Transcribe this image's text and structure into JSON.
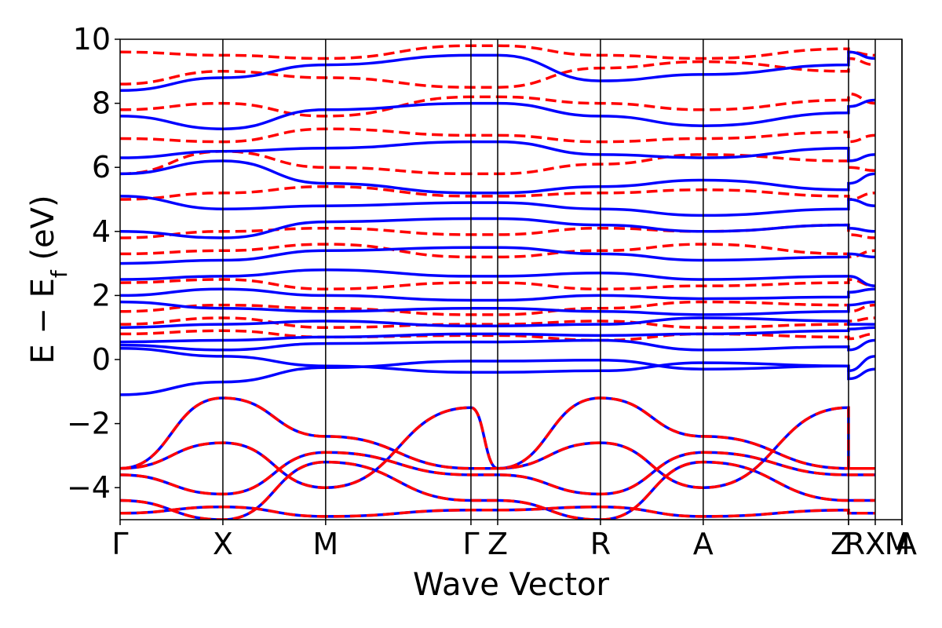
{
  "chart_data": {
    "type": "line",
    "xlabel": "Wave Vector",
    "ylabel": "E − E_f (eV)",
    "ylabel_parts": {
      "e": "E",
      "minus": "−",
      "ef_main": "E",
      "ef_sub": "f",
      "unit": "(eV)"
    },
    "ylim": [
      -5,
      10
    ],
    "yticks": [
      -4,
      -2,
      0,
      2,
      4,
      6,
      8,
      10
    ],
    "ytick_labels": [
      "−4",
      "−2",
      "0",
      "2",
      "4",
      "6",
      "8",
      "10"
    ],
    "kpath": [
      {
        "label": "Γ",
        "k": 0.0
      },
      {
        "label": "X",
        "k": 0.5
      },
      {
        "label": "M",
        "k": 1.0
      },
      {
        "label": "Γ",
        "k": 1.707
      },
      {
        "label": "Z",
        "k": 1.837
      },
      {
        "label": "R",
        "k": 2.337
      },
      {
        "label": "A",
        "k": 2.837
      },
      {
        "label": "Z",
        "k": 3.544
      },
      {
        "label": "R",
        "k": 3.544
      },
      {
        "label": "X",
        "k": 3.674
      },
      {
        "label": "M",
        "k": 3.804
      },
      {
        "label": "A",
        "k": 3.804
      }
    ],
    "xlim": [
      0,
      3.804
    ],
    "grid": false,
    "series_styles": [
      {
        "style": "solid",
        "color": "#0000ff"
      },
      {
        "style": "dashed",
        "color": "#ff0000"
      }
    ],
    "bands": {
      "solid_blue": [
        [
          -1.1,
          -0.7,
          -0.25,
          -0.05,
          -0.05,
          -0.02,
          -0.3,
          -0.2,
          -0.6,
          -0.3
        ],
        [
          0.35,
          0.1,
          -0.2,
          -0.4,
          -0.4,
          -0.35,
          -0.1,
          -0.2,
          -0.35,
          0.1
        ],
        [
          0.45,
          0.3,
          0.5,
          0.55,
          0.55,
          0.6,
          0.3,
          0.4,
          0.3,
          0.6
        ],
        [
          0.55,
          0.6,
          0.7,
          0.8,
          0.8,
          0.75,
          0.8,
          0.9,
          0.95,
          1.0
        ],
        [
          1.0,
          1.1,
          1.2,
          1.05,
          1.05,
          1.1,
          1.3,
          1.2,
          1.1,
          1.1
        ],
        [
          1.8,
          1.6,
          1.5,
          1.6,
          1.6,
          1.5,
          1.4,
          1.5,
          1.7,
          1.8
        ],
        [
          2.0,
          2.2,
          2.0,
          1.85,
          1.85,
          2.0,
          1.9,
          1.95,
          2.1,
          2.2
        ],
        [
          2.5,
          2.6,
          2.8,
          2.6,
          2.6,
          2.7,
          2.5,
          2.6,
          2.6,
          2.3
        ],
        [
          3.0,
          3.1,
          3.4,
          3.5,
          3.5,
          3.3,
          3.1,
          3.2,
          3.3,
          3.2
        ],
        [
          4.0,
          3.8,
          4.3,
          4.4,
          4.4,
          4.2,
          4.0,
          4.2,
          4.1,
          4.0
        ],
        [
          5.1,
          4.7,
          4.8,
          4.9,
          4.9,
          4.7,
          4.5,
          4.7,
          5.0,
          4.8
        ],
        [
          5.8,
          6.2,
          5.5,
          5.2,
          5.2,
          5.4,
          5.6,
          5.3,
          5.5,
          5.8
        ],
        [
          6.3,
          6.5,
          6.6,
          6.8,
          6.8,
          6.4,
          6.3,
          6.6,
          6.2,
          6.4
        ],
        [
          7.6,
          7.2,
          7.8,
          8.0,
          8.0,
          7.6,
          7.3,
          7.7,
          7.9,
          8.1
        ],
        [
          8.4,
          8.8,
          9.2,
          9.5,
          9.5,
          8.7,
          8.9,
          9.2,
          9.6,
          9.4
        ]
      ],
      "dashed_red": [
        [
          0.8,
          0.9,
          0.7,
          0.75,
          0.75,
          0.6,
          0.8,
          0.7,
          0.65,
          0.8
        ],
        [
          1.1,
          1.3,
          1.0,
          1.1,
          1.1,
          1.2,
          1.0,
          1.1,
          1.2,
          1.3
        ],
        [
          1.5,
          1.7,
          1.6,
          1.4,
          1.4,
          1.6,
          1.8,
          1.7,
          1.5,
          1.7
        ],
        [
          2.4,
          2.5,
          2.2,
          2.4,
          2.4,
          2.2,
          2.3,
          2.4,
          2.5,
          2.3
        ],
        [
          3.3,
          3.4,
          3.6,
          3.2,
          3.2,
          3.4,
          3.6,
          3.3,
          3.2,
          3.4
        ],
        [
          3.8,
          4.0,
          4.1,
          3.9,
          3.9,
          4.1,
          4.0,
          4.2,
          3.9,
          3.8
        ],
        [
          5.0,
          5.2,
          5.4,
          5.1,
          5.1,
          5.2,
          5.3,
          5.1,
          5.0,
          5.2
        ],
        [
          5.8,
          6.5,
          6.0,
          5.8,
          5.8,
          6.1,
          6.4,
          6.2,
          6.0,
          5.9
        ],
        [
          6.9,
          6.8,
          7.2,
          7.0,
          7.0,
          6.8,
          6.9,
          7.1,
          6.8,
          7.0
        ],
        [
          7.8,
          8.0,
          7.6,
          8.2,
          8.2,
          8.0,
          7.8,
          8.1,
          8.3,
          8.0
        ],
        [
          8.6,
          9.0,
          8.8,
          8.5,
          8.5,
          9.1,
          9.3,
          9.0,
          9.4,
          9.2
        ],
        [
          9.6,
          9.5,
          9.4,
          9.8,
          9.8,
          9.5,
          9.4,
          9.7,
          9.6,
          9.5
        ]
      ],
      "valence_overlap": [
        [
          -3.4,
          -1.2,
          -2.4,
          -3.4,
          -3.4,
          -1.2,
          -2.4,
          -3.4,
          -3.4,
          -3.4
        ],
        [
          -3.4,
          -2.6,
          -4.0,
          -1.5,
          -3.4,
          -2.6,
          -4.0,
          -1.5,
          -3.4,
          -3.4
        ],
        [
          -3.6,
          -4.2,
          -2.9,
          -3.6,
          -3.6,
          -4.2,
          -2.9,
          -3.6,
          -3.6,
          -3.6
        ],
        [
          -4.4,
          -5.0,
          -3.2,
          -4.4,
          -4.4,
          -5.0,
          -3.2,
          -4.4,
          -4.4,
          -4.4
        ],
        [
          -4.8,
          -4.6,
          -4.9,
          -4.7,
          -4.7,
          -4.6,
          -4.9,
          -4.7,
          -4.8,
          -4.8
        ]
      ]
    }
  }
}
